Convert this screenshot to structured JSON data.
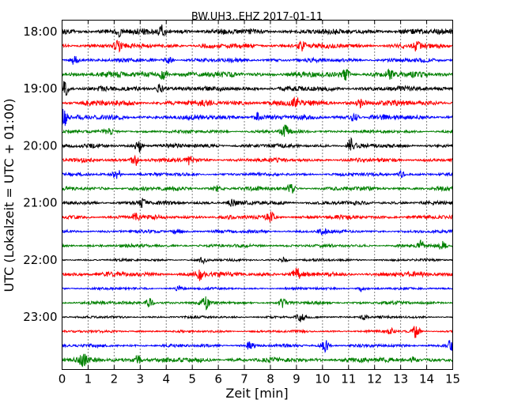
{
  "chart_data": {
    "type": "line",
    "title": "BW.UH3..EHZ 2017-01-11",
    "xlabel": "Zeit  [min]",
    "ylabel": "UTC (Lokalzeit = UTC + 01:00)",
    "xlim": [
      0,
      15
    ],
    "x_ticks": [
      "0",
      "1",
      "2",
      "3",
      "4",
      "5",
      "6",
      "7",
      "8",
      "9",
      "10",
      "11",
      "12",
      "13",
      "14",
      "15"
    ],
    "y_ticks": [
      "18:00",
      "19:00",
      "20:00",
      "21:00",
      "22:00",
      "23:00"
    ],
    "grid": "vertical-dotted",
    "trace_colors": [
      "#000000",
      "#ff0000",
      "#0000ff",
      "#008000"
    ],
    "rows": [
      {
        "start": "18:00",
        "amp": 0.7,
        "events": [
          {
            "t": 3.85,
            "a": 1.4
          },
          {
            "t": 2.2,
            "a": 0.8
          }
        ]
      },
      {
        "start": "18:15",
        "amp": 0.6,
        "events": [
          {
            "t": 2.15,
            "a": 1.2
          },
          {
            "t": 9.2,
            "a": 1.1
          },
          {
            "t": 13.6,
            "a": 0.9
          }
        ]
      },
      {
        "start": "18:30",
        "amp": 0.5,
        "events": [
          {
            "t": 0.45,
            "a": 1.0
          },
          {
            "t": 4.1,
            "a": 0.7
          }
        ]
      },
      {
        "start": "18:45",
        "amp": 0.7,
        "events": [
          {
            "t": 3.9,
            "a": 1.3
          },
          {
            "t": 10.9,
            "a": 1.0
          },
          {
            "t": 12.6,
            "a": 0.9
          }
        ]
      },
      {
        "start": "19:00",
        "amp": 0.6,
        "events": [
          {
            "t": 0.1,
            "a": 1.6
          },
          {
            "t": 3.75,
            "a": 1.0
          }
        ]
      },
      {
        "start": "19:15",
        "amp": 0.7,
        "events": [
          {
            "t": 9.0,
            "a": 1.1
          },
          {
            "t": 11.5,
            "a": 0.8
          }
        ]
      },
      {
        "start": "19:30",
        "amp": 0.6,
        "events": [
          {
            "t": 0.05,
            "a": 2.2
          },
          {
            "t": 7.5,
            "a": 0.9
          },
          {
            "t": 11.2,
            "a": 0.9
          }
        ]
      },
      {
        "start": "19:45",
        "amp": 0.4,
        "events": [
          {
            "t": 8.55,
            "a": 1.6
          },
          {
            "t": 1.8,
            "a": 0.6
          }
        ]
      },
      {
        "start": "20:00",
        "amp": 0.5,
        "events": [
          {
            "t": 2.95,
            "a": 1.3
          },
          {
            "t": 11.1,
            "a": 1.5
          }
        ]
      },
      {
        "start": "20:15",
        "amp": 0.5,
        "events": [
          {
            "t": 2.8,
            "a": 1.4
          },
          {
            "t": 4.9,
            "a": 0.9
          }
        ]
      },
      {
        "start": "20:30",
        "amp": 0.4,
        "events": [
          {
            "t": 2.1,
            "a": 1.4
          },
          {
            "t": 13.0,
            "a": 0.8
          }
        ]
      },
      {
        "start": "20:45",
        "amp": 0.5,
        "events": [
          {
            "t": 8.8,
            "a": 0.9
          },
          {
            "t": 6.0,
            "a": 0.7
          }
        ]
      },
      {
        "start": "21:00",
        "amp": 0.5,
        "events": [
          {
            "t": 3.1,
            "a": 0.9
          },
          {
            "t": 6.5,
            "a": 0.7
          }
        ]
      },
      {
        "start": "21:15",
        "amp": 0.5,
        "events": [
          {
            "t": 2.85,
            "a": 1.0
          },
          {
            "t": 8.0,
            "a": 1.0
          }
        ]
      },
      {
        "start": "21:30",
        "amp": 0.4,
        "events": [
          {
            "t": 4.4,
            "a": 0.7
          },
          {
            "t": 10.0,
            "a": 0.6
          }
        ]
      },
      {
        "start": "21:45",
        "amp": 0.4,
        "events": [
          {
            "t": 13.8,
            "a": 1.2
          },
          {
            "t": 14.6,
            "a": 0.9
          }
        ]
      },
      {
        "start": "22:00",
        "amp": 0.3,
        "events": [
          {
            "t": 5.4,
            "a": 0.6
          },
          {
            "t": 8.5,
            "a": 0.6
          }
        ]
      },
      {
        "start": "22:15",
        "amp": 0.6,
        "events": [
          {
            "t": 5.3,
            "a": 1.3
          },
          {
            "t": 9.0,
            "a": 1.2
          }
        ]
      },
      {
        "start": "22:30",
        "amp": 0.3,
        "events": [
          {
            "t": 4.5,
            "a": 0.7
          },
          {
            "t": 11.5,
            "a": 0.6
          }
        ]
      },
      {
        "start": "22:45",
        "amp": 0.4,
        "events": [
          {
            "t": 3.35,
            "a": 1.1
          },
          {
            "t": 5.5,
            "a": 1.2
          },
          {
            "t": 8.5,
            "a": 0.9
          }
        ]
      },
      {
        "start": "23:00",
        "amp": 0.3,
        "events": [
          {
            "t": 9.15,
            "a": 0.9
          },
          {
            "t": 11.6,
            "a": 0.6
          }
        ]
      },
      {
        "start": "23:15",
        "amp": 0.3,
        "events": [
          {
            "t": 13.6,
            "a": 1.5
          },
          {
            "t": 12.6,
            "a": 0.7
          }
        ]
      },
      {
        "start": "23:30",
        "amp": 0.4,
        "events": [
          {
            "t": 10.1,
            "a": 1.3
          },
          {
            "t": 14.95,
            "a": 1.3
          },
          {
            "t": 7.2,
            "a": 0.8
          }
        ]
      },
      {
        "start": "23:45",
        "amp": 0.6,
        "events": [
          {
            "t": 0.8,
            "a": 1.1
          },
          {
            "t": 2.9,
            "a": 1.0
          },
          {
            "t": 13.5,
            "a": 0.8
          }
        ]
      }
    ]
  }
}
